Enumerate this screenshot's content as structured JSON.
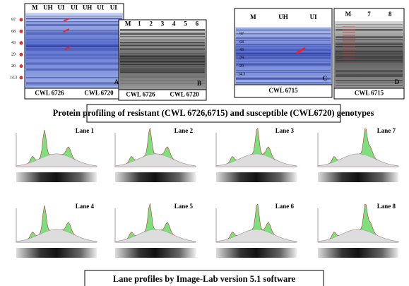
{
  "gels": [
    {
      "lanes": [
        "M",
        "UH",
        "UI",
        "UI",
        "UH",
        "UI",
        "UI"
      ],
      "markers": [
        "97",
        "68",
        "43",
        "29",
        "20",
        "14.3"
      ],
      "letter": "A",
      "footer": [
        "CWL 6726",
        "CWL 6720"
      ]
    },
    {
      "lanes": [
        "M",
        "1",
        "2",
        "3",
        "4",
        "5",
        "6"
      ],
      "letter": "B",
      "footer": [
        "CWL 6726",
        "CWL 6720"
      ]
    },
    {
      "lanes": [
        "M",
        "UH",
        "UI"
      ],
      "markers": [
        "97",
        "68",
        "43",
        "29",
        "20",
        "14.3"
      ],
      "letter": "C",
      "footer": [
        "CWL 6715"
      ]
    },
    {
      "lanes": [
        "M",
        "7",
        "8"
      ],
      "letter": "D",
      "footer": [
        "CWL 6715"
      ]
    }
  ],
  "caption_top": "Protein profiling of resistant (CWL 6726,6715) and susceptible (CWL6720) genotypes",
  "profiles": [
    "Lane 1",
    "Lane 2",
    "Lane 3",
    "Lane 7",
    "Lane 4",
    "Lane 5",
    "Lane 6",
    "Lane 8"
  ],
  "caption_bottom": "Lane profiles by Image-Lab version 5.1 software"
}
